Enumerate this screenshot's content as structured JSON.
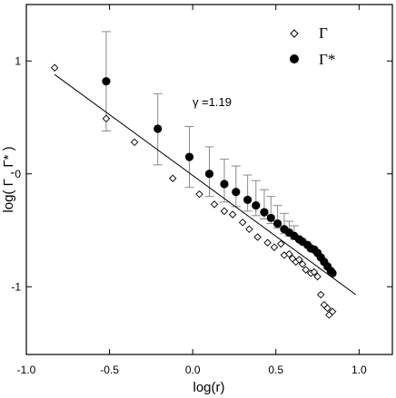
{
  "chart_data": {
    "type": "scatter",
    "xlabel": "log(r)",
    "ylabel": "log( Γ , Γ* )",
    "xlim": [
      -1.0,
      1.2
    ],
    "ylim": [
      -1.6,
      1.5
    ],
    "x_ticks": [
      -1.0,
      -0.5,
      0.0,
      0.5,
      1.0
    ],
    "x_tick_labels": [
      "-1.0",
      "-0.5",
      "0.0",
      "0.5",
      "1.0"
    ],
    "y_ticks": [
      -1,
      0,
      1
    ],
    "y_tick_labels": [
      "-1",
      "0",
      "1"
    ],
    "grid": false,
    "legend_position": "top-right",
    "series": [
      {
        "name": "Γ",
        "marker": "open-diamond",
        "color": "#000000",
        "points": [
          [
            -0.83,
            0.94
          ],
          [
            -0.52,
            0.49
          ],
          [
            -0.35,
            0.28
          ],
          [
            -0.12,
            -0.04
          ],
          [
            0.04,
            -0.18
          ],
          [
            0.13,
            -0.27
          ],
          [
            0.19,
            -0.33
          ],
          [
            0.24,
            -0.36
          ],
          [
            0.3,
            -0.43
          ],
          [
            0.34,
            -0.49
          ],
          [
            0.39,
            -0.56
          ],
          [
            0.45,
            -0.61
          ],
          [
            0.49,
            -0.65
          ],
          [
            0.53,
            -0.62
          ],
          [
            0.55,
            -0.72
          ],
          [
            0.58,
            -0.71
          ],
          [
            0.6,
            -0.75
          ],
          [
            0.62,
            -0.78
          ],
          [
            0.64,
            -0.76
          ],
          [
            0.66,
            -0.8
          ],
          [
            0.68,
            -0.85
          ],
          [
            0.71,
            -0.88
          ],
          [
            0.73,
            -0.87
          ],
          [
            0.75,
            -0.91
          ],
          [
            0.77,
            -1.07
          ],
          [
            0.79,
            -1.16
          ],
          [
            0.81,
            -1.19
          ],
          [
            0.82,
            -1.25
          ],
          [
            0.84,
            -1.22
          ]
        ]
      },
      {
        "name": "Γ*",
        "marker": "filled-circle",
        "color": "#000000",
        "points": [
          [
            -0.52,
            0.82
          ],
          [
            -0.21,
            0.4
          ],
          [
            -0.02,
            0.15
          ],
          [
            0.1,
            0.0
          ],
          [
            0.19,
            -0.09
          ],
          [
            0.26,
            -0.16
          ],
          [
            0.33,
            -0.23
          ],
          [
            0.38,
            -0.28
          ],
          [
            0.43,
            -0.34
          ],
          [
            0.47,
            -0.39
          ],
          [
            0.51,
            -0.44
          ],
          [
            0.55,
            -0.49
          ],
          [
            0.58,
            -0.52
          ],
          [
            0.61,
            -0.55
          ],
          [
            0.64,
            -0.58
          ],
          [
            0.66,
            -0.6
          ],
          [
            0.69,
            -0.63
          ],
          [
            0.71,
            -0.66
          ],
          [
            0.73,
            -0.67
          ],
          [
            0.75,
            -0.7
          ],
          [
            0.77,
            -0.74
          ],
          [
            0.79,
            -0.78
          ],
          [
            0.81,
            -0.82
          ],
          [
            0.83,
            -0.86
          ],
          [
            0.84,
            -0.88
          ]
        ],
        "error_bars": [
          {
            "x": -0.52,
            "low": 0.38,
            "high": 1.26
          },
          {
            "x": -0.21,
            "low": 0.08,
            "high": 0.71
          },
          {
            "x": -0.02,
            "low": -0.12,
            "high": 0.42
          },
          {
            "x": 0.1,
            "low": -0.2,
            "high": 0.24
          },
          {
            "x": 0.19,
            "low": -0.25,
            "high": 0.13
          },
          {
            "x": 0.26,
            "low": -0.29,
            "high": 0.07
          },
          {
            "x": 0.33,
            "low": -0.33,
            "high": -0.01
          },
          {
            "x": 0.38,
            "low": -0.37,
            "high": -0.06
          },
          {
            "x": 0.43,
            "low": -0.4,
            "high": -0.14
          },
          {
            "x": 0.47,
            "low": -0.44,
            "high": -0.2
          },
          {
            "x": 0.51,
            "low": -0.48,
            "high": -0.28
          },
          {
            "x": 0.55,
            "low": -0.53,
            "high": -0.35
          },
          {
            "x": 0.58,
            "low": -0.55,
            "high": -0.42
          },
          {
            "x": 0.61,
            "low": -0.58,
            "high": -0.46
          }
        ]
      }
    ],
    "fit_line": {
      "x_start": -0.83,
      "y_start": 0.88,
      "x_end": 0.98,
      "y_end": -1.07
    },
    "annotation": "γ =1.19"
  }
}
